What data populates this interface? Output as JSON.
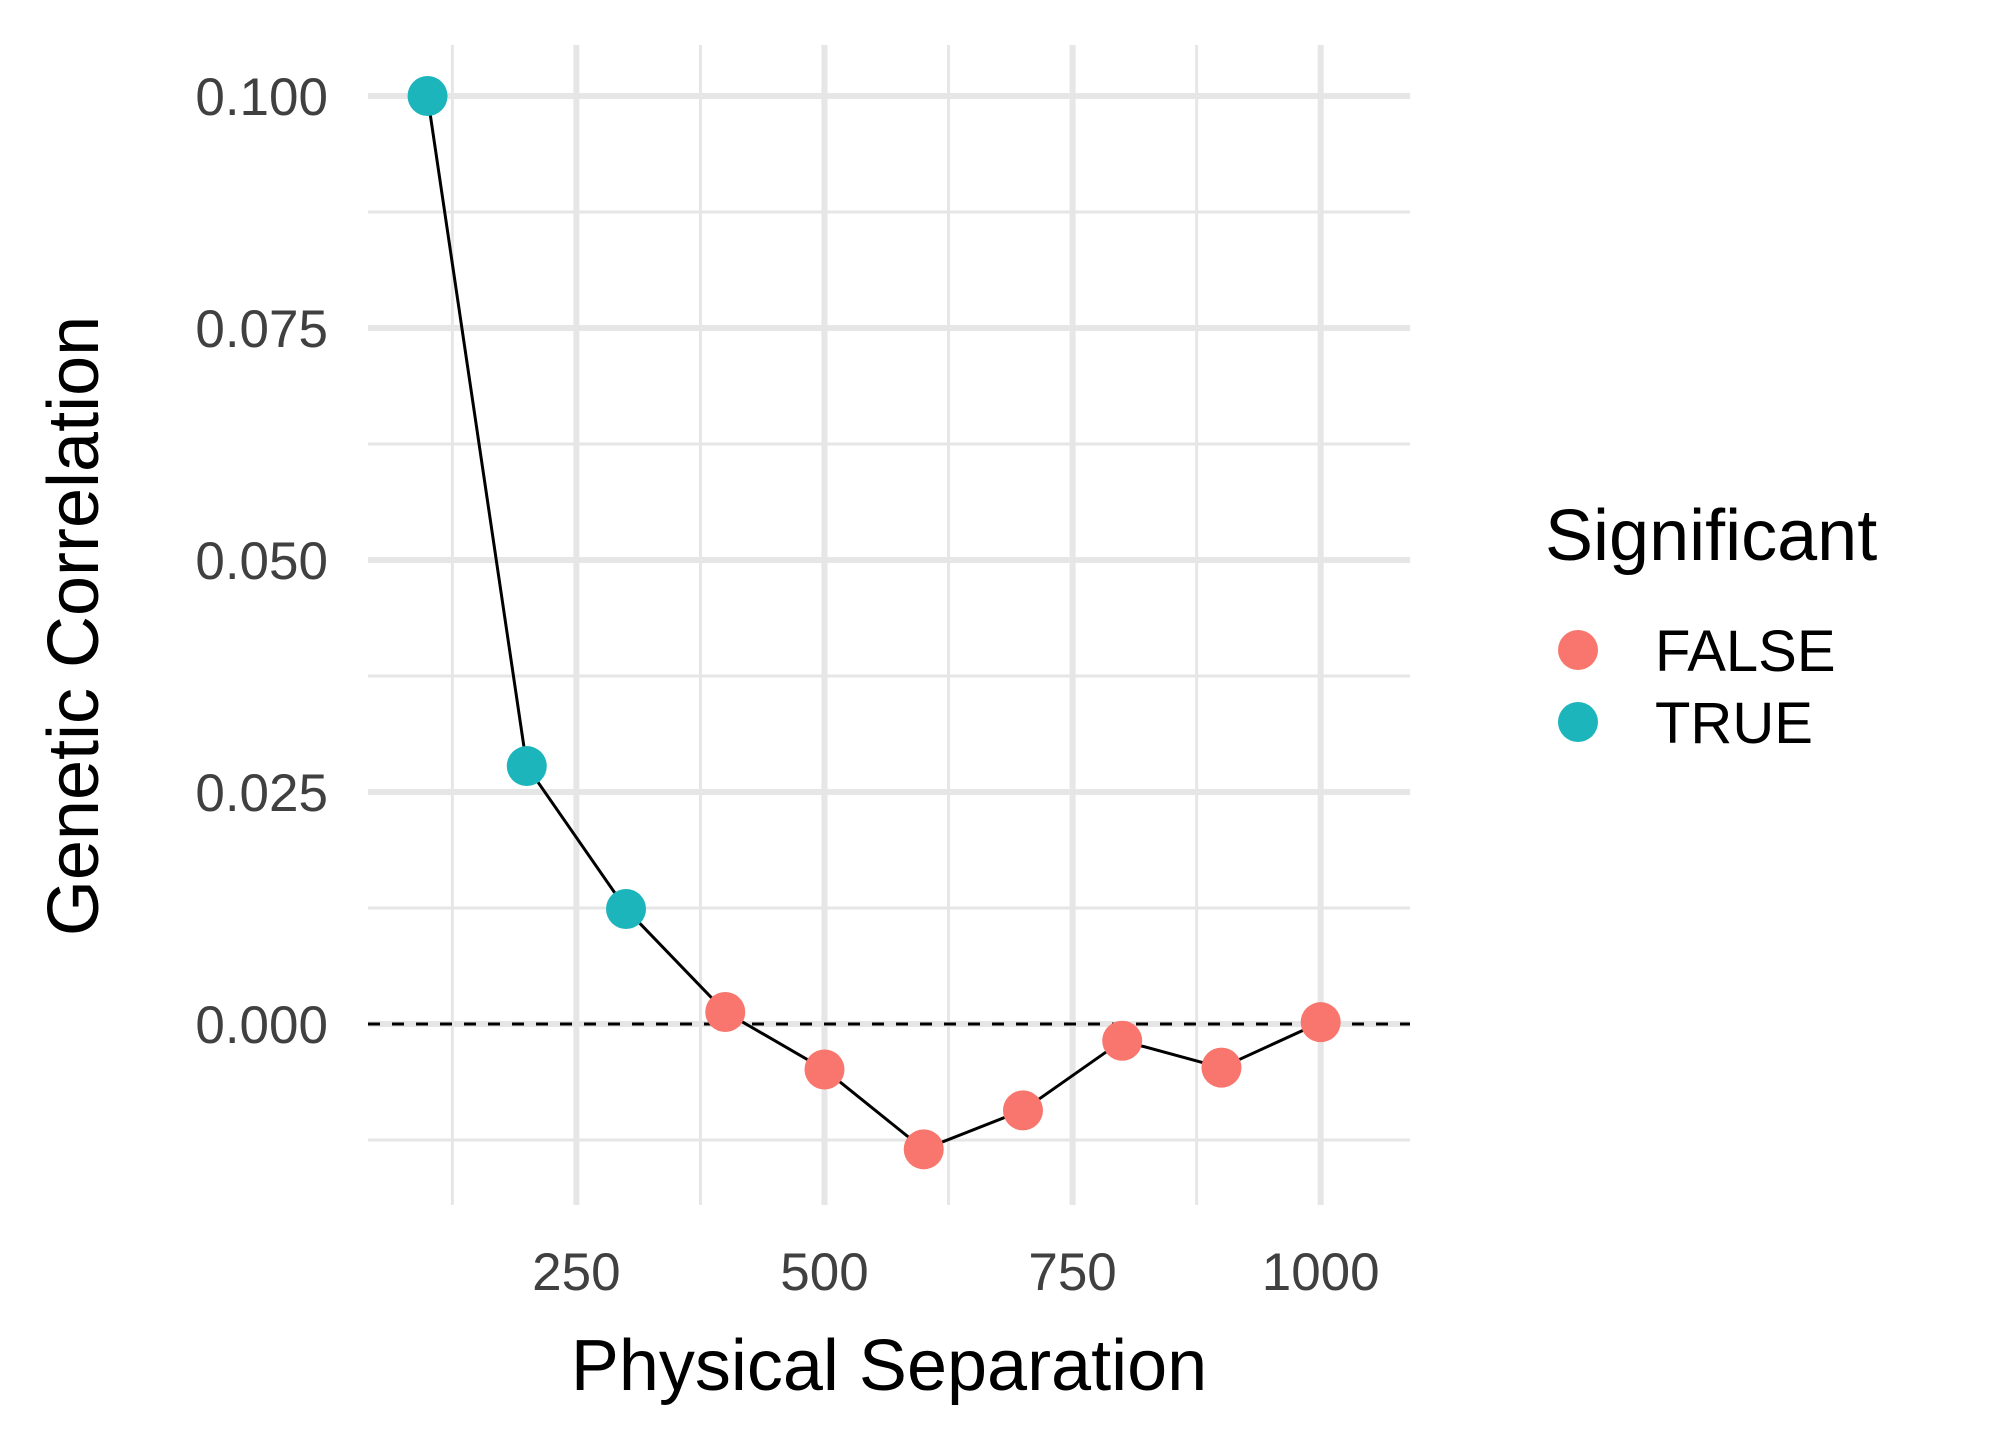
{
  "chart_data": {
    "type": "line",
    "xlabel": "Physical Separation",
    "ylabel": "Genetic Correlation",
    "xlim": [
      40,
      1090
    ],
    "ylim": [
      -0.0195,
      0.1055
    ],
    "x_ticks": [
      250,
      500,
      750,
      1000
    ],
    "x_minor_ticks": [
      125,
      375,
      625,
      875
    ],
    "y_ticks": [
      0.0,
      0.025,
      0.05,
      0.075,
      0.1
    ],
    "y_tick_labels": [
      "0.000",
      "0.025",
      "0.050",
      "0.075",
      "0.100"
    ],
    "y_minor_ticks": [
      -0.0125,
      0.0125,
      0.0375,
      0.0625,
      0.0875
    ],
    "grid": true,
    "reference_line": {
      "y": 0,
      "style": "dashed"
    },
    "points": [
      {
        "x": 100,
        "y": 0.1,
        "significant": "TRUE"
      },
      {
        "x": 200,
        "y": 0.0278,
        "significant": "TRUE"
      },
      {
        "x": 300,
        "y": 0.0124,
        "significant": "TRUE"
      },
      {
        "x": 400,
        "y": 0.0013,
        "significant": "FALSE"
      },
      {
        "x": 500,
        "y": -0.0049,
        "significant": "FALSE"
      },
      {
        "x": 600,
        "y": -0.0135,
        "significant": "FALSE"
      },
      {
        "x": 700,
        "y": -0.0093,
        "significant": "FALSE"
      },
      {
        "x": 800,
        "y": -0.0018,
        "significant": "FALSE"
      },
      {
        "x": 900,
        "y": -0.0047,
        "significant": "FALSE"
      },
      {
        "x": 1000,
        "y": 0.0002,
        "significant": "FALSE"
      }
    ],
    "legend": {
      "title": "Significant",
      "placement": "right",
      "entries": [
        {
          "label": "FALSE",
          "color": "#F8766D"
        },
        {
          "label": "TRUE",
          "color": "#00BFC4"
        }
      ]
    }
  },
  "colors": {
    "false_point": "#F8766D",
    "true_point": "#1CB5BC",
    "grid": "#E6E6E6",
    "line": "#000000"
  }
}
